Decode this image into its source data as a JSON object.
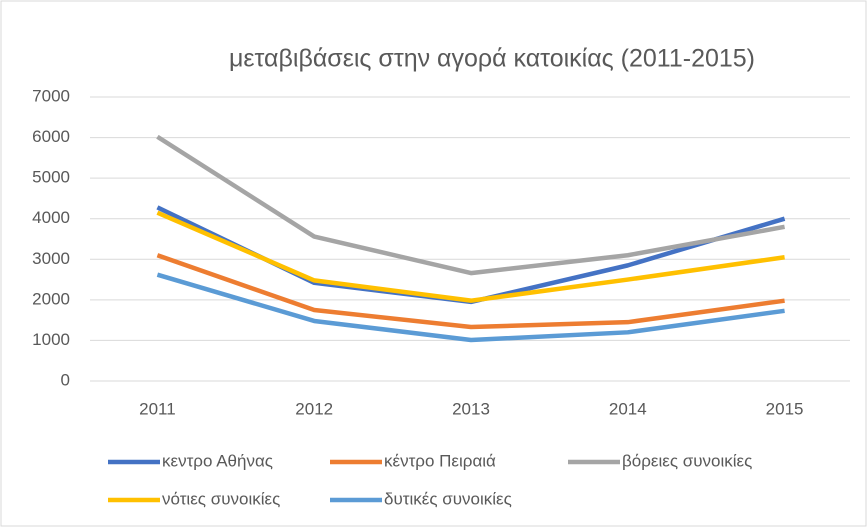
{
  "chart_data": {
    "type": "line",
    "title": "μεταβιβάσεις στην αγορά κατοικίας (2011-2015)",
    "categories": [
      "2011",
      "2012",
      "2013",
      "2014",
      "2015"
    ],
    "series": [
      {
        "name": "κεντρο Αθήνας",
        "color": "#4472c4",
        "values": [
          4280,
          2420,
          1950,
          2850,
          4000
        ]
      },
      {
        "name": "κέντρο Πειραιά",
        "color": "#ed7d31",
        "values": [
          3100,
          1750,
          1330,
          1450,
          1980
        ]
      },
      {
        "name": "βόρειες συνοικίες",
        "color": "#a5a5a5",
        "values": [
          6020,
          3560,
          2660,
          3100,
          3800
        ]
      },
      {
        "name": "νότιες συνοικίες",
        "color": "#ffc000",
        "values": [
          4150,
          2480,
          1980,
          2500,
          3050
        ]
      },
      {
        "name": "δυτικές συνοικίες",
        "color": "#5b9bd5",
        "values": [
          2620,
          1480,
          1010,
          1200,
          1730
        ]
      }
    ],
    "ylim": [
      0,
      7000
    ],
    "yticks": [
      0,
      1000,
      2000,
      3000,
      4000,
      5000,
      6000,
      7000
    ],
    "grid": true
  }
}
